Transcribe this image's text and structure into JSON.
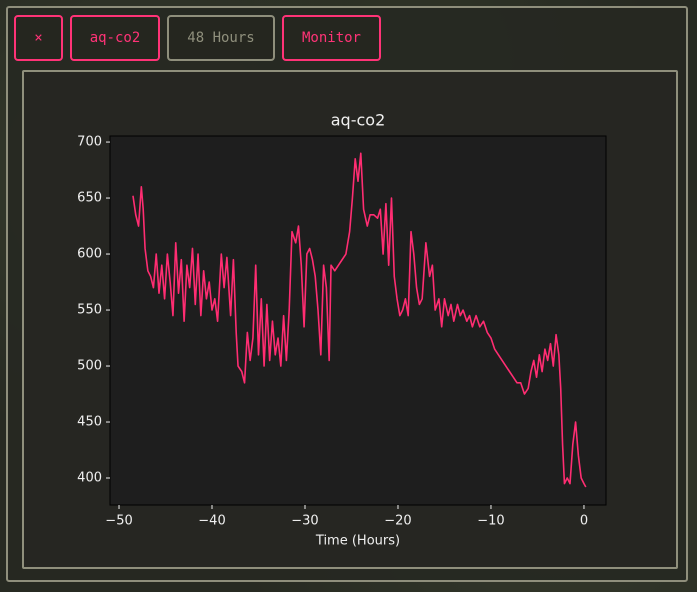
{
  "buttons": [
    "×",
    "aq-co2",
    "48 Hours",
    "Monitor"
  ],
  "chart_data": {
    "type": "line",
    "title": "aq-co2",
    "x_label": "Time (Hours)",
    "xlim": [
      -50.97,
      2.37
    ],
    "ylim": [
      375.9,
      705.4
    ],
    "xticks": [
      {
        "value": -50,
        "label": "−50"
      },
      {
        "value": -40,
        "label": "−40"
      },
      {
        "value": -30,
        "label": "−30"
      },
      {
        "value": -20,
        "label": "−20"
      },
      {
        "value": -10,
        "label": "−10"
      },
      0
    ],
    "yticks": [
      400,
      450,
      500,
      550,
      600,
      650,
      700
    ],
    "series": [
      {
        "name": "aq-co2",
        "color": "#ff2d72",
        "x": [
          -48.5,
          -48.2,
          -47.9,
          -47.6,
          -47.4,
          -47.2,
          -46.9,
          -46.6,
          -46.3,
          -46.0,
          -45.7,
          -45.4,
          -45.1,
          -44.8,
          -44.5,
          -44.2,
          -43.9,
          -43.6,
          -43.3,
          -43.0,
          -42.7,
          -42.4,
          -42.1,
          -41.8,
          -41.5,
          -41.2,
          -40.9,
          -40.6,
          -40.3,
          -40.0,
          -39.7,
          -39.4,
          -39.0,
          -38.7,
          -38.4,
          -38.0,
          -37.7,
          -37.4,
          -37.2,
          -36.8,
          -36.5,
          -36.2,
          -35.9,
          -35.6,
          -35.3,
          -35.0,
          -34.7,
          -34.4,
          -34.1,
          -33.8,
          -33.5,
          -33.2,
          -32.9,
          -32.6,
          -32.3,
          -32.0,
          -31.7,
          -31.4,
          -31.0,
          -30.7,
          -30.4,
          -30.1,
          -29.8,
          -29.5,
          -29.2,
          -28.9,
          -28.6,
          -28.3,
          -28.0,
          -27.7,
          -27.4,
          -27.2,
          -26.8,
          -26.4,
          -26.0,
          -25.6,
          -25.2,
          -24.9,
          -24.6,
          -24.3,
          -24.0,
          -23.7,
          -23.3,
          -23.0,
          -22.6,
          -22.2,
          -21.9,
          -21.6,
          -21.3,
          -21.0,
          -20.7,
          -20.4,
          -20.1,
          -19.8,
          -19.5,
          -19.2,
          -18.9,
          -18.6,
          -18.3,
          -18.0,
          -17.7,
          -17.4,
          -17.0,
          -16.6,
          -16.3,
          -16.0,
          -15.6,
          -15.3,
          -15.0,
          -14.6,
          -14.3,
          -14.0,
          -13.6,
          -13.3,
          -13.0,
          -12.6,
          -12.3,
          -12.0,
          -11.6,
          -11.2,
          -10.8,
          -10.4,
          -10.0,
          -9.6,
          -9.2,
          -8.8,
          -8.4,
          -8.0,
          -7.6,
          -7.2,
          -6.8,
          -6.4,
          -6.0,
          -5.7,
          -5.4,
          -5.1,
          -4.8,
          -4.5,
          -4.2,
          -3.9,
          -3.6,
          -3.3,
          -3.0,
          -2.7,
          -2.5,
          -2.3,
          -2.1,
          -1.8,
          -1.5,
          -1.2,
          -0.9,
          -0.6,
          -0.3,
          0.0,
          0.2
        ],
        "values": [
          652,
          635,
          625,
          660,
          640,
          605,
          585,
          580,
          570,
          600,
          565,
          590,
          560,
          600,
          575,
          545,
          610,
          565,
          595,
          540,
          590,
          570,
          605,
          555,
          600,
          545,
          585,
          560,
          575,
          550,
          560,
          540,
          600,
          570,
          597,
          545,
          595,
          530,
          500,
          495,
          485,
          530,
          505,
          525,
          590,
          510,
          560,
          500,
          555,
          505,
          540,
          510,
          525,
          500,
          545,
          505,
          550,
          620,
          610,
          625,
          590,
          535,
          600,
          605,
          595,
          580,
          550,
          510,
          590,
          570,
          505,
          590,
          585,
          590,
          595,
          600,
          620,
          650,
          685,
          665,
          690,
          640,
          625,
          635,
          635,
          632,
          640,
          600,
          645,
          590,
          650,
          580,
          560,
          545,
          550,
          560,
          545,
          620,
          600,
          570,
          555,
          560,
          610,
          580,
          590,
          550,
          560,
          535,
          560,
          545,
          555,
          540,
          555,
          545,
          550,
          540,
          545,
          535,
          545,
          535,
          540,
          530,
          525,
          515,
          510,
          505,
          500,
          495,
          490,
          485,
          485,
          475,
          480,
          495,
          505,
          490,
          510,
          495,
          515,
          505,
          520,
          500,
          528,
          510,
          480,
          430,
          395,
          400,
          395,
          430,
          450,
          420,
          400,
          395,
          392
        ]
      }
    ]
  }
}
